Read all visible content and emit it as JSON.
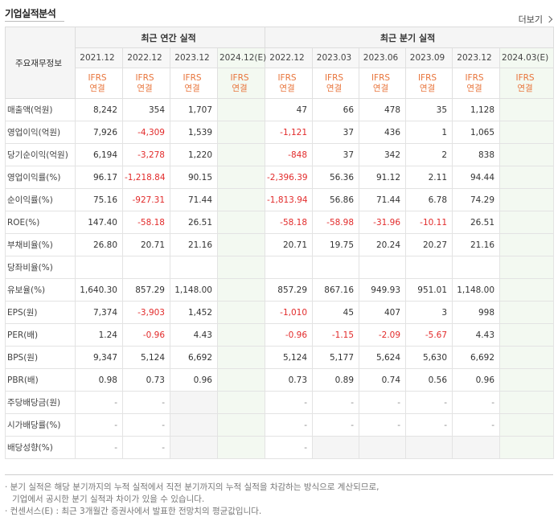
{
  "section_title": "기업실적분석",
  "more_label": "더보기",
  "table": {
    "row_header": "주요재무정보",
    "group_annual": "최근 연간 실적",
    "group_quarter": "최근 분기 실적",
    "periods": [
      "2021.12",
      "2022.12",
      "2023.12",
      "2024.12(E)",
      "2022.12",
      "2023.03",
      "2023.06",
      "2023.09",
      "2023.12",
      "2024.03(E)"
    ],
    "ifrs_line1": "IFRS",
    "ifrs_line2": "연결",
    "rows": [
      {
        "label": "매출액(억원)",
        "values": [
          "8,242",
          "354",
          "1,707",
          "",
          "47",
          "66",
          "478",
          "35",
          "1,128",
          ""
        ]
      },
      {
        "label": "영업이익(억원)",
        "values": [
          "7,926",
          "-4,309",
          "1,539",
          "",
          "-1,121",
          "37",
          "436",
          "1",
          "1,065",
          ""
        ]
      },
      {
        "label": "당기순이익(억원)",
        "values": [
          "6,194",
          "-3,278",
          "1,220",
          "",
          "-848",
          "37",
          "342",
          "2",
          "838",
          ""
        ]
      },
      {
        "label": "영업이익률(%)",
        "values": [
          "96.17",
          "-1,218.84",
          "90.15",
          "",
          "-2,396.39",
          "56.36",
          "91.12",
          "2.11",
          "94.44",
          ""
        ]
      },
      {
        "label": "순이익률(%)",
        "values": [
          "75.16",
          "-927.31",
          "71.44",
          "",
          "-1,813.94",
          "56.86",
          "71.44",
          "6.78",
          "74.29",
          ""
        ]
      },
      {
        "label": "ROE(%)",
        "values": [
          "147.40",
          "-58.18",
          "26.51",
          "",
          "-58.18",
          "-58.98",
          "-31.96",
          "-10.11",
          "26.51",
          ""
        ]
      },
      {
        "label": "부채비율(%)",
        "values": [
          "26.80",
          "20.71",
          "21.16",
          "",
          "20.71",
          "19.75",
          "20.24",
          "20.27",
          "21.16",
          ""
        ]
      },
      {
        "label": "당좌비율(%)",
        "values": [
          "",
          "",
          "",
          "",
          "",
          "",
          "",
          "",
          "",
          ""
        ]
      },
      {
        "label": "유보율(%)",
        "values": [
          "1,640.30",
          "857.29",
          "1,148.00",
          "",
          "857.29",
          "867.16",
          "949.93",
          "951.01",
          "1,148.00",
          ""
        ]
      },
      {
        "label": "EPS(원)",
        "values": [
          "7,374",
          "-3,903",
          "1,452",
          "",
          "-1,010",
          "45",
          "407",
          "3",
          "998",
          ""
        ]
      },
      {
        "label": "PER(배)",
        "values": [
          "1.24",
          "-0.96",
          "4.43",
          "",
          "-0.96",
          "-1.15",
          "-2.09",
          "-5.67",
          "4.43",
          ""
        ]
      },
      {
        "label": "BPS(원)",
        "values": [
          "9,347",
          "5,124",
          "6,692",
          "",
          "5,124",
          "5,177",
          "5,624",
          "5,630",
          "6,692",
          ""
        ]
      },
      {
        "label": "PBR(배)",
        "values": [
          "0.98",
          "0.73",
          "0.96",
          "",
          "0.73",
          "0.89",
          "0.74",
          "0.56",
          "0.96",
          ""
        ]
      },
      {
        "label": "주당배당금(원)",
        "values": [
          "-",
          "-",
          "",
          "",
          "-",
          "-",
          "-",
          "-",
          "-",
          ""
        ]
      },
      {
        "label": "시가배당률(%)",
        "values": [
          "-",
          "-",
          "",
          "",
          "-",
          "-",
          "-",
          "-",
          "-",
          ""
        ]
      },
      {
        "label": "배당성향(%)",
        "values": [
          "-",
          "-",
          "",
          "",
          "-",
          "",
          "",
          "",
          "",
          ""
        ]
      }
    ]
  },
  "notes": {
    "line1": "· 분기 실적은 해당 분기까지의 누적 실적에서 직전 분기까지의 누적 실적을 차감하는 방식으로 계산되므로,",
    "line2": "기업에서 공시한 분기 실적과 차이가 있을 수 있습니다.",
    "line3": "· 컨센서스(E) : 최근 3개월간 증권사에서 발표한 전망치의 평균값입니다."
  },
  "colors": {
    "negative": "#e22b2b",
    "ifrs": "#e8743b",
    "estimate_bg": "#f3f9f1"
  }
}
